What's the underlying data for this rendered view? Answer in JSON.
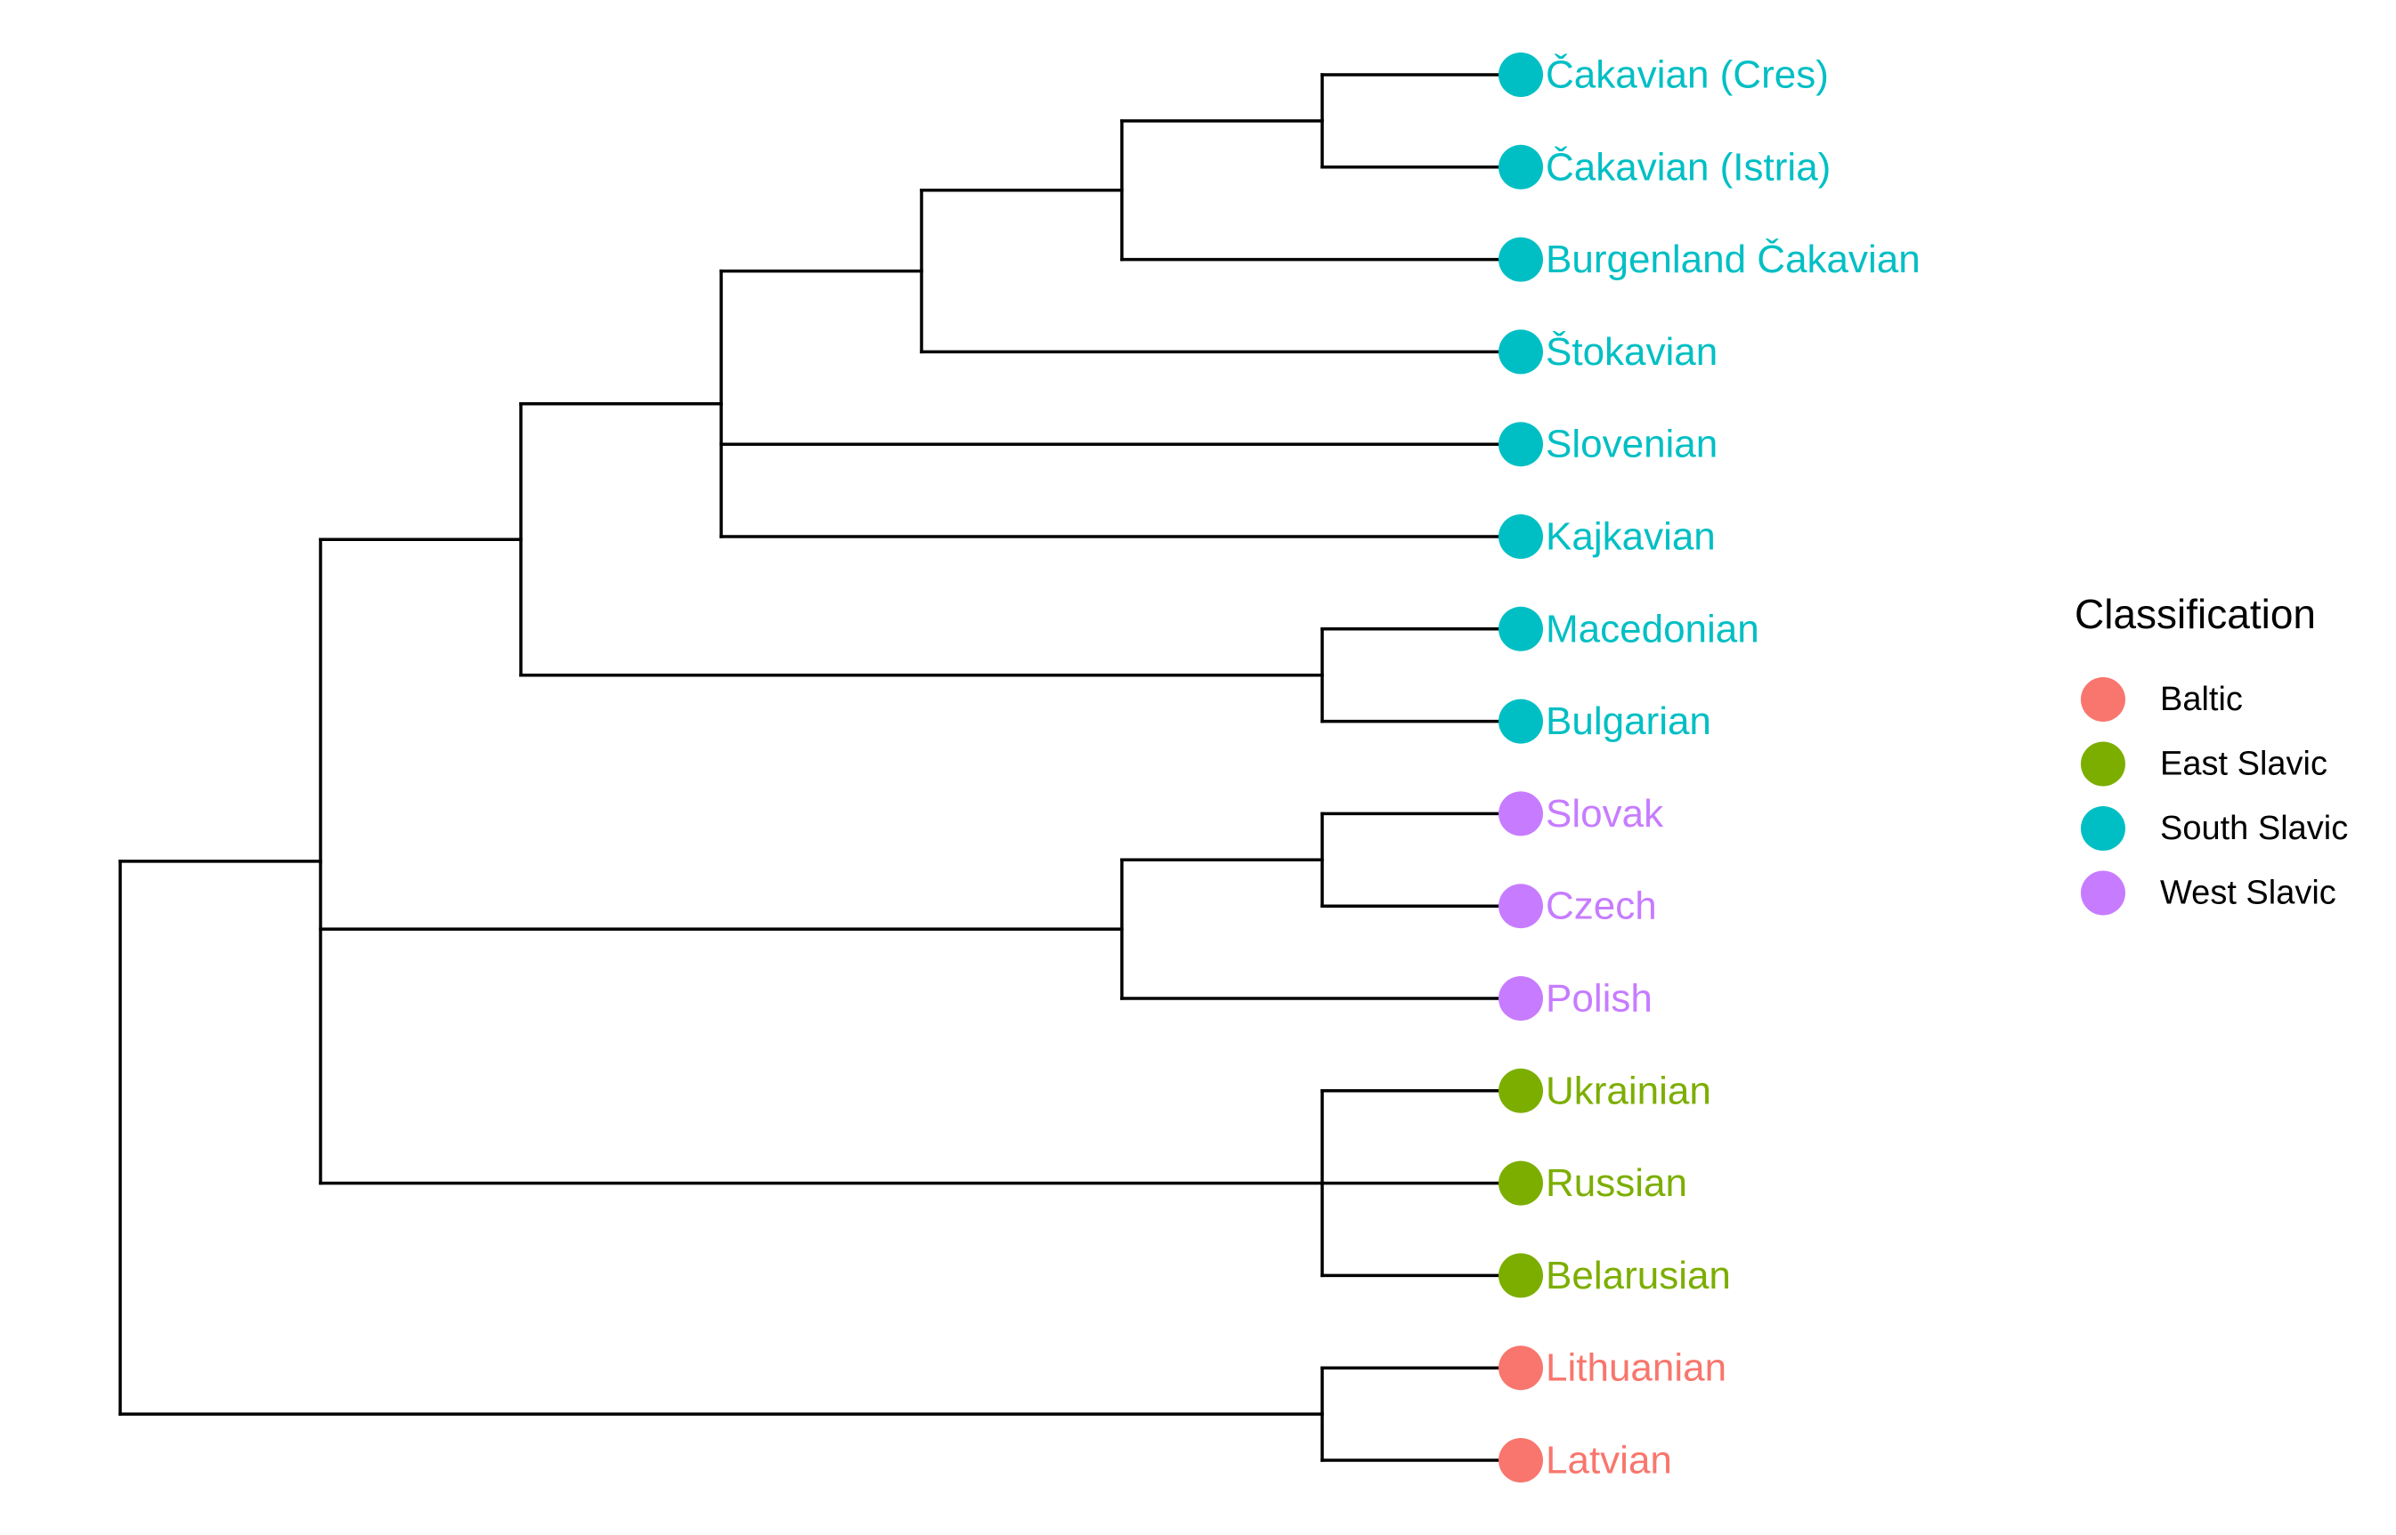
{
  "colors": {
    "Baltic": "#F8766D",
    "East Slavic": "#7CAE00",
    "South Slavic": "#00BFC4",
    "West Slavic": "#C77CFF"
  },
  "legend": {
    "title": "Classification",
    "items": [
      "Baltic",
      "East Slavic",
      "South Slavic",
      "West Slavic"
    ]
  },
  "tree": {
    "children": [
      {
        "children": [
          {
            "children": [
              {
                "children": [
                  {
                    "children": [
                      {
                        "children": [
                          {
                            "label": "Čakavian (Cres)",
                            "group": "South Slavic"
                          },
                          {
                            "label": "Čakavian (Istria)",
                            "group": "South Slavic"
                          }
                        ]
                      },
                      {
                        "label": "Burgenland Čakavian",
                        "group": "South Slavic"
                      }
                    ]
                  },
                  {
                    "label": "Štokavian",
                    "group": "South Slavic"
                  }
                ]
              },
              {
                "label": "Slovenian",
                "group": "South Slavic"
              },
              {
                "label": "Kajkavian",
                "group": "South Slavic"
              }
            ]
          },
          {
            "children": [
              {
                "label": "Macedonian",
                "group": "South Slavic"
              },
              {
                "label": "Bulgarian",
                "group": "South Slavic"
              }
            ]
          }
        ]
      },
      {
        "children": [
          {
            "children": [
              {
                "label": "Slovak",
                "group": "West Slavic"
              },
              {
                "label": "Czech",
                "group": "West Slavic"
              }
            ]
          },
          {
            "label": "Polish",
            "group": "West Slavic"
          }
        ]
      },
      {
        "children": [
          {
            "label": "Ukrainian",
            "group": "East Slavic"
          },
          {
            "label": "Russian",
            "group": "East Slavic"
          },
          {
            "label": "Belarusian",
            "group": "East Slavic"
          }
        ]
      }
    ],
    "outgroup": {
      "children": [
        {
          "label": "Lithuanian",
          "group": "Baltic"
        },
        {
          "label": "Latvian",
          "group": "Baltic"
        }
      ]
    }
  }
}
